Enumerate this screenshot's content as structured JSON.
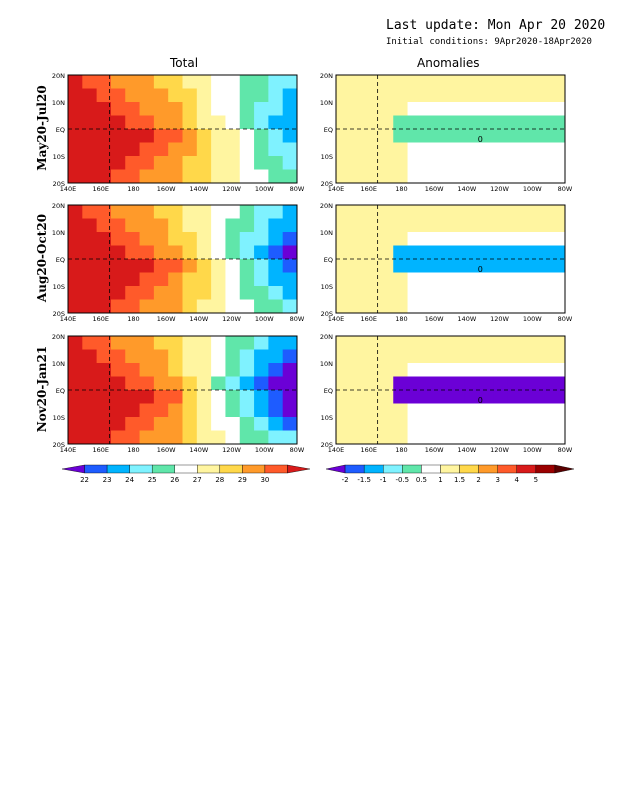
{
  "header": {
    "last_update": "Last update: Mon Apr 20 2020",
    "initial_conditions": "Initial conditions: 9Apr2020-18Apr2020"
  },
  "columns": [
    "Total",
    "Anomalies"
  ],
  "rows": [
    "May20-Jul20",
    "Aug20-Oct20",
    "Nov20-Jan21"
  ],
  "chart_data": [
    {
      "type": "heatmap",
      "panel": "Total",
      "x_tick_labels": [
        "140E",
        "160E",
        "180",
        "160W",
        "140W",
        "120W",
        "100W",
        "80W"
      ],
      "y_tick_labels": [
        "20N",
        "10N",
        "EQ",
        "10S",
        "20S"
      ],
      "xlim": [
        "140E",
        "80W"
      ],
      "ylim": [
        "20S",
        "20N"
      ],
      "colorbar": {
        "labels": [
          "22",
          "23",
          "24",
          "25",
          "26",
          "27",
          "28",
          "29",
          "30"
        ],
        "colors": [
          "#6b00d6",
          "#1e5cff",
          "#00b4ff",
          "#7ff2ff",
          "#60e6aa",
          "#ffffff",
          "#fff5a0",
          "#ffd84a",
          "#ff9a2a",
          "#ff5a2a",
          "#d81a1a"
        ]
      },
      "maps": [
        "May20-Jul20",
        "Aug20-Oct20",
        "Nov20-Jan21"
      ]
    },
    {
      "type": "heatmap",
      "panel": "Anomalies",
      "x_tick_labels": [
        "140E",
        "160E",
        "180",
        "160W",
        "140W",
        "120W",
        "100W",
        "80W"
      ],
      "y_tick_labels": [
        "20N",
        "10N",
        "EQ",
        "10S",
        "20S"
      ],
      "xlim": [
        "140E",
        "80W"
      ],
      "ylim": [
        "20S",
        "20N"
      ],
      "colorbar": {
        "labels": [
          "-2",
          "-1.5",
          "-1",
          "-0.5",
          "0.5",
          "1",
          "1.5",
          "2",
          "3",
          "4",
          "5"
        ],
        "colors": [
          "#6b00d6",
          "#1e5cff",
          "#00b4ff",
          "#7ff2ff",
          "#60e6aa",
          "#ffffff",
          "#fff5a0",
          "#ffd84a",
          "#ff9a2a",
          "#ff5a2a",
          "#d81a1a",
          "#9a0000",
          "#5a0000"
        ]
      },
      "contour_label": "0",
      "maps": [
        "May20-Jul20",
        "Aug20-Oct20",
        "Nov20-Jan21"
      ]
    }
  ]
}
